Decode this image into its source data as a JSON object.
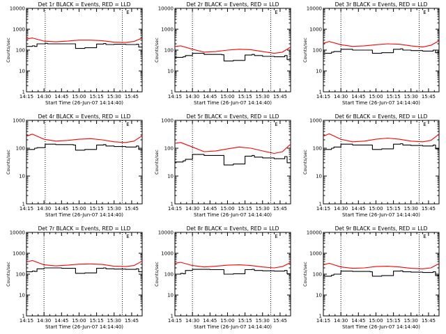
{
  "figure": {
    "footer_marker": "E"
  },
  "colors": {
    "events": "#000000",
    "lld": "#ff0000",
    "background": "#ffffff"
  },
  "chart_data": [
    {
      "type": "line",
      "title": "Det 1r BLACK = Events, RED = LLD",
      "xlabel": "Start Time (26-Jun-07 14:14:40)",
      "ylabel": "Counts/sec",
      "yscale": "log",
      "ylim": [
        1,
        10000
      ],
      "xlim": [
        "14:15",
        "15:54"
      ],
      "xticks": [
        "14:15",
        "14:30",
        "14:45",
        "15:00",
        "15:15",
        "15:30",
        "15:45"
      ],
      "yticks": [
        "1",
        "10",
        "100",
        "1000",
        "10000"
      ],
      "vlines": [
        "14:31",
        "15:37"
      ],
      "series": [
        {
          "name": "Events",
          "color": "black",
          "x": [
            "14:15",
            "14:20",
            "14:22",
            "14:24",
            "14:31",
            "14:33",
            "14:45",
            "14:55",
            "14:57",
            "15:05",
            "15:15",
            "15:21",
            "15:23",
            "15:30",
            "15:40",
            "15:49",
            "15:51",
            "15:54"
          ],
          "y": [
            150,
            160,
            150,
            200,
            210,
            200,
            200,
            200,
            120,
            130,
            195,
            205,
            185,
            190,
            185,
            190,
            140,
            150
          ]
        },
        {
          "name": "LLD",
          "color": "red",
          "x": [
            "14:15",
            "14:20",
            "14:30",
            "14:40",
            "14:50",
            "15:00",
            "15:10",
            "15:20",
            "15:30",
            "15:40",
            "15:47",
            "15:54"
          ],
          "y": [
            340,
            380,
            270,
            250,
            270,
            300,
            300,
            280,
            240,
            230,
            260,
            380
          ]
        }
      ]
    },
    {
      "type": "line",
      "title": "Det 2r BLACK = Events, RED = LLD",
      "xlabel": "Start Time (26-Jun-07 14:14:40)",
      "ylabel": "Counts/sec",
      "yscale": "log",
      "ylim": [
        1,
        10000
      ],
      "xlim": [
        "14:15",
        "15:54"
      ],
      "xticks": [
        "14:15",
        "14:30",
        "14:45",
        "15:00",
        "15:15",
        "15:30",
        "15:45"
      ],
      "yticks": [
        "1",
        "10",
        "100",
        "1000",
        "10000"
      ],
      "vlines": [
        "14:30",
        "15:37"
      ],
      "series": [
        {
          "name": "Events",
          "color": "black",
          "x": [
            "14:15",
            "14:22",
            "14:24",
            "14:30",
            "14:40",
            "14:55",
            "14:57",
            "15:05",
            "15:15",
            "15:21",
            "15:23",
            "15:30",
            "15:40",
            "15:49",
            "15:51",
            "15:54"
          ],
          "y": [
            45,
            48,
            55,
            70,
            62,
            60,
            30,
            32,
            58,
            62,
            55,
            50,
            48,
            55,
            35,
            40
          ]
        },
        {
          "name": "LLD",
          "color": "red",
          "x": [
            "14:15",
            "14:20",
            "14:30",
            "14:40",
            "14:50",
            "15:00",
            "15:10",
            "15:20",
            "15:30",
            "15:40",
            "15:47",
            "15:54"
          ],
          "y": [
            150,
            160,
            110,
            80,
            85,
            100,
            110,
            105,
            85,
            70,
            80,
            140
          ]
        }
      ]
    },
    {
      "type": "line",
      "title": "Det 3r BLACK = Events, RED = LLD",
      "xlabel": "Start Time (26-Jun-07 14:14:40)",
      "ylabel": "Counts/sec",
      "yscale": "log",
      "ylim": [
        1,
        10000
      ],
      "xlim": [
        "14:15",
        "15:54"
      ],
      "xticks": [
        "14:15",
        "14:30",
        "14:45",
        "15:00",
        "15:15",
        "15:30",
        "15:45"
      ],
      "yticks": [
        "1",
        "10",
        "100",
        "1000",
        "10000"
      ],
      "vlines": [
        "14:30",
        "15:37"
      ],
      "series": [
        {
          "name": "Events",
          "color": "black",
          "x": [
            "14:15",
            "14:22",
            "14:24",
            "14:30",
            "14:40",
            "14:55",
            "14:57",
            "15:05",
            "15:15",
            "15:21",
            "15:23",
            "15:30",
            "15:40",
            "15:49",
            "15:51",
            "15:54"
          ],
          "y": [
            70,
            80,
            85,
            110,
            100,
            100,
            70,
            75,
            110,
            115,
            100,
            95,
            90,
            100,
            75,
            80
          ]
        },
        {
          "name": "LLD",
          "color": "red",
          "x": [
            "14:15",
            "14:20",
            "14:30",
            "14:40",
            "14:50",
            "15:00",
            "15:10",
            "15:20",
            "15:30",
            "15:40",
            "15:47",
            "15:54"
          ],
          "y": [
            210,
            260,
            180,
            150,
            160,
            180,
            200,
            190,
            160,
            140,
            170,
            280
          ]
        }
      ]
    },
    {
      "type": "line",
      "title": "Det 4r BLACK = Events, RED = LLD",
      "xlabel": "Start Time (26-Jun-07 14:14:40)",
      "ylabel": "Counts/sec",
      "yscale": "log",
      "ylim": [
        1,
        1000
      ],
      "xlim": [
        "14:15",
        "15:54"
      ],
      "xticks": [
        "14:15",
        "14:30",
        "14:45",
        "15:00",
        "15:15",
        "15:30",
        "15:45"
      ],
      "yticks": [
        "1",
        "10",
        "100",
        "1000"
      ],
      "vlines": [
        "14:31",
        "15:37"
      ],
      "series": [
        {
          "name": "Events",
          "color": "black",
          "x": [
            "14:15",
            "14:22",
            "14:24",
            "14:31",
            "14:40",
            "14:55",
            "14:57",
            "15:05",
            "15:15",
            "15:21",
            "15:23",
            "15:30",
            "15:40",
            "15:49",
            "15:51",
            "15:54"
          ],
          "y": [
            90,
            100,
            105,
            140,
            135,
            130,
            85,
            90,
            130,
            135,
            120,
            115,
            110,
            120,
            90,
            95
          ]
        },
        {
          "name": "LLD",
          "color": "red",
          "x": [
            "14:15",
            "14:20",
            "14:30",
            "14:40",
            "14:50",
            "15:00",
            "15:10",
            "15:20",
            "15:30",
            "15:40",
            "15:47",
            "15:54"
          ],
          "y": [
            270,
            320,
            210,
            180,
            190,
            210,
            220,
            200,
            170,
            160,
            180,
            280
          ]
        }
      ]
    },
    {
      "type": "line",
      "title": "Det 5r BLACK = Events, RED = LLD",
      "xlabel": "Start Time (26-Jun-07 14:14:40)",
      "ylabel": "Counts/sec",
      "yscale": "log",
      "ylim": [
        1,
        1000
      ],
      "xlim": [
        "14:15",
        "15:54"
      ],
      "xticks": [
        "14:15",
        "14:30",
        "14:45",
        "15:00",
        "15:15",
        "15:30",
        "15:45"
      ],
      "yticks": [
        "1",
        "10",
        "100",
        "1000"
      ],
      "vlines": [
        "14:30",
        "15:37"
      ],
      "series": [
        {
          "name": "Events",
          "color": "black",
          "x": [
            "14:15",
            "14:22",
            "14:24",
            "14:30",
            "14:40",
            "14:55",
            "14:57",
            "15:05",
            "15:15",
            "15:21",
            "15:23",
            "15:30",
            "15:40",
            "15:49",
            "15:51",
            "15:54"
          ],
          "y": [
            32,
            35,
            40,
            60,
            55,
            55,
            25,
            27,
            52,
            55,
            48,
            45,
            42,
            50,
            30,
            33
          ]
        },
        {
          "name": "LLD",
          "color": "red",
          "x": [
            "14:15",
            "14:20",
            "14:30",
            "14:40",
            "14:50",
            "15:00",
            "15:10",
            "15:20",
            "15:30",
            "15:40",
            "15:47",
            "15:54"
          ],
          "y": [
            150,
            160,
            110,
            75,
            80,
            95,
            110,
            100,
            80,
            65,
            75,
            140
          ]
        }
      ]
    },
    {
      "type": "line",
      "title": "Det 6r BLACK = Events, RED = LLD",
      "xlabel": "Start Time (26-Jun-07 14:14:40)",
      "ylabel": "Counts/sec",
      "yscale": "log",
      "ylim": [
        1,
        1000
      ],
      "xlim": [
        "14:15",
        "15:54"
      ],
      "xticks": [
        "14:15",
        "14:30",
        "14:45",
        "15:00",
        "15:15",
        "15:30",
        "15:45"
      ],
      "yticks": [
        "1",
        "10",
        "100",
        "1000"
      ],
      "vlines": [
        "14:30",
        "15:37"
      ],
      "series": [
        {
          "name": "Events",
          "color": "black",
          "x": [
            "14:15",
            "14:22",
            "14:24",
            "14:30",
            "14:40",
            "14:55",
            "14:57",
            "15:05",
            "15:15",
            "15:21",
            "15:23",
            "15:30",
            "15:40",
            "15:49",
            "15:51",
            "15:54"
          ],
          "y": [
            90,
            100,
            110,
            140,
            130,
            130,
            90,
            95,
            140,
            145,
            130,
            125,
            120,
            130,
            95,
            100
          ]
        },
        {
          "name": "LLD",
          "color": "red",
          "x": [
            "14:15",
            "14:20",
            "14:30",
            "14:40",
            "14:50",
            "15:00",
            "15:10",
            "15:20",
            "15:30",
            "15:40",
            "15:47",
            "15:54"
          ],
          "y": [
            270,
            330,
            210,
            170,
            180,
            210,
            230,
            210,
            180,
            170,
            190,
            320
          ]
        }
      ]
    },
    {
      "type": "line",
      "title": "Det 7r BLACK = Events, RED = LLD",
      "xlabel": "Start Time (26-Jun-07 14:14:40)",
      "ylabel": "Counts/sec",
      "yscale": "log",
      "ylim": [
        1,
        10000
      ],
      "xlim": [
        "14:15",
        "15:54"
      ],
      "xticks": [
        "14:15",
        "14:30",
        "14:45",
        "15:00",
        "15:15",
        "15:30",
        "15:45"
      ],
      "yticks": [
        "1",
        "10",
        "100",
        "1000",
        "10000"
      ],
      "vlines": [
        "14:30",
        "15:37"
      ],
      "series": [
        {
          "name": "Events",
          "color": "black",
          "x": [
            "14:15",
            "14:20",
            "14:22",
            "14:24",
            "14:30",
            "14:45",
            "14:55",
            "14:57",
            "15:05",
            "15:15",
            "15:21",
            "15:23",
            "15:30",
            "15:40",
            "15:49",
            "15:51",
            "15:54"
          ],
          "y": [
            130,
            140,
            135,
            180,
            200,
            190,
            190,
            110,
            115,
            190,
            200,
            180,
            175,
            170,
            180,
            130,
            140
          ]
        },
        {
          "name": "LLD",
          "color": "red",
          "x": [
            "14:15",
            "14:20",
            "14:30",
            "14:40",
            "14:50",
            "15:00",
            "15:10",
            "15:20",
            "15:30",
            "15:40",
            "15:47",
            "15:54"
          ],
          "y": [
            380,
            450,
            280,
            250,
            270,
            300,
            310,
            290,
            240,
            230,
            260,
            420
          ]
        }
      ]
    },
    {
      "type": "line",
      "title": "Det 8r BLACK = Events, RED = LLD",
      "xlabel": "Start Time (26-Jun-07 14:14:40)",
      "ylabel": "Counts/sec",
      "yscale": "log",
      "ylim": [
        1,
        10000
      ],
      "xlim": [
        "14:15",
        "15:54"
      ],
      "xticks": [
        "14:15",
        "14:30",
        "14:45",
        "15:00",
        "15:15",
        "15:30",
        "15:45"
      ],
      "yticks": [
        "1",
        "10",
        "100",
        "1000",
        "10000"
      ],
      "vlines": [
        "14:30",
        "15:37"
      ],
      "series": [
        {
          "name": "Events",
          "color": "black",
          "x": [
            "14:15",
            "14:20",
            "14:22",
            "14:24",
            "14:30",
            "14:45",
            "14:55",
            "14:57",
            "15:05",
            "15:15",
            "15:21",
            "15:23",
            "15:30",
            "15:40",
            "15:49",
            "15:51",
            "15:54"
          ],
          "y": [
            100,
            110,
            105,
            150,
            170,
            165,
            165,
            100,
            105,
            165,
            170,
            150,
            145,
            140,
            150,
            105,
            110
          ]
        },
        {
          "name": "LLD",
          "color": "red",
          "x": [
            "14:15",
            "14:20",
            "14:30",
            "14:40",
            "14:50",
            "15:00",
            "15:10",
            "15:20",
            "15:30",
            "15:40",
            "15:47",
            "15:54"
          ],
          "y": [
            330,
            370,
            260,
            220,
            240,
            270,
            280,
            260,
            220,
            200,
            230,
            360
          ]
        }
      ]
    },
    {
      "type": "line",
      "title": "Det 9r BLACK = Events, RED = LLD",
      "xlabel": "Start Time (26-Jun-07 14:14:40)",
      "ylabel": "Counts/sec",
      "yscale": "log",
      "ylim": [
        1,
        10000
      ],
      "xlim": [
        "14:15",
        "15:54"
      ],
      "xticks": [
        "14:15",
        "14:30",
        "14:45",
        "15:00",
        "15:15",
        "15:30",
        "15:45"
      ],
      "yticks": [
        "1",
        "10",
        "100",
        "1000",
        "10000"
      ],
      "vlines": [
        "14:30",
        "15:37"
      ],
      "series": [
        {
          "name": "Events",
          "color": "black",
          "x": [
            "14:15",
            "14:22",
            "14:24",
            "14:30",
            "14:40",
            "14:55",
            "14:57",
            "15:05",
            "15:15",
            "15:21",
            "15:23",
            "15:30",
            "15:40",
            "15:49",
            "15:51",
            "15:54"
          ],
          "y": [
            80,
            90,
            100,
            140,
            135,
            130,
            80,
            85,
            140,
            145,
            130,
            125,
            120,
            130,
            85,
            90
          ]
        },
        {
          "name": "LLD",
          "color": "red",
          "x": [
            "14:15",
            "14:20",
            "14:30",
            "14:40",
            "14:50",
            "15:00",
            "15:10",
            "15:20",
            "15:30",
            "15:40",
            "15:47",
            "15:54"
          ],
          "y": [
            280,
            330,
            220,
            190,
            200,
            230,
            240,
            220,
            190,
            180,
            200,
            320
          ]
        }
      ]
    }
  ]
}
